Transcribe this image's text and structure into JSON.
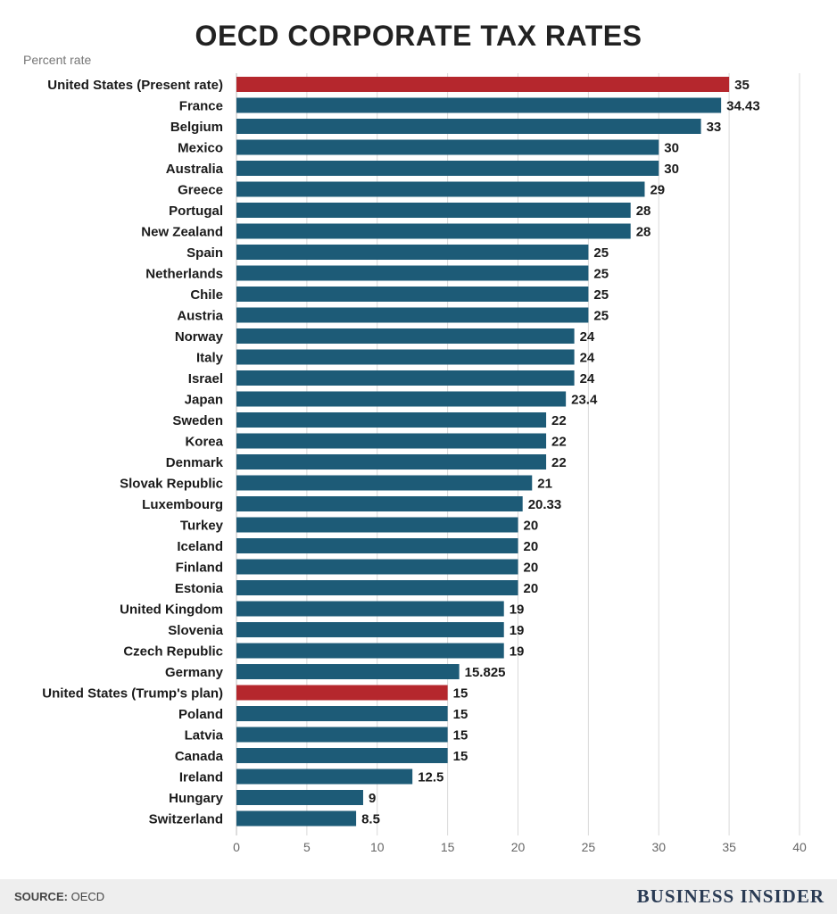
{
  "chart_data": {
    "type": "bar",
    "orientation": "horizontal",
    "title": "OECD CORPORATE TAX RATES",
    "unit_label": "Percent rate",
    "xlim": [
      0,
      40
    ],
    "ticks": [
      0,
      5,
      10,
      15,
      20,
      25,
      30,
      35,
      40
    ],
    "grid": true,
    "colors": {
      "default": "#1d5b77",
      "highlight": "#b5272d"
    },
    "bars": [
      {
        "label": "United States (Present rate)",
        "value": 35,
        "value_label": "35",
        "highlight": true
      },
      {
        "label": "France",
        "value": 34.43,
        "value_label": "34.43",
        "highlight": false
      },
      {
        "label": "Belgium",
        "value": 33,
        "value_label": "33",
        "highlight": false
      },
      {
        "label": "Mexico",
        "value": 30,
        "value_label": "30",
        "highlight": false
      },
      {
        "label": "Australia",
        "value": 30,
        "value_label": "30",
        "highlight": false
      },
      {
        "label": "Greece",
        "value": 29,
        "value_label": "29",
        "highlight": false
      },
      {
        "label": "Portugal",
        "value": 28,
        "value_label": "28",
        "highlight": false
      },
      {
        "label": "New Zealand",
        "value": 28,
        "value_label": "28",
        "highlight": false
      },
      {
        "label": "Spain",
        "value": 25,
        "value_label": "25",
        "highlight": false
      },
      {
        "label": "Netherlands",
        "value": 25,
        "value_label": "25",
        "highlight": false
      },
      {
        "label": "Chile",
        "value": 25,
        "value_label": "25",
        "highlight": false
      },
      {
        "label": "Austria",
        "value": 25,
        "value_label": "25",
        "highlight": false
      },
      {
        "label": "Norway",
        "value": 24,
        "value_label": "24",
        "highlight": false
      },
      {
        "label": "Italy",
        "value": 24,
        "value_label": "24",
        "highlight": false
      },
      {
        "label": "Israel",
        "value": 24,
        "value_label": "24",
        "highlight": false
      },
      {
        "label": "Japan",
        "value": 23.4,
        "value_label": "23.4",
        "highlight": false
      },
      {
        "label": "Sweden",
        "value": 22,
        "value_label": "22",
        "highlight": false
      },
      {
        "label": "Korea",
        "value": 22,
        "value_label": "22",
        "highlight": false
      },
      {
        "label": "Denmark",
        "value": 22,
        "value_label": "22",
        "highlight": false
      },
      {
        "label": "Slovak Republic",
        "value": 21,
        "value_label": "21",
        "highlight": false
      },
      {
        "label": "Luxembourg",
        "value": 20.33,
        "value_label": "20.33",
        "highlight": false
      },
      {
        "label": "Turkey",
        "value": 20,
        "value_label": "20",
        "highlight": false
      },
      {
        "label": "Iceland",
        "value": 20,
        "value_label": "20",
        "highlight": false
      },
      {
        "label": "Finland",
        "value": 20,
        "value_label": "20",
        "highlight": false
      },
      {
        "label": "Estonia",
        "value": 20,
        "value_label": "20",
        "highlight": false
      },
      {
        "label": "United Kingdom",
        "value": 19,
        "value_label": "19",
        "highlight": false
      },
      {
        "label": "Slovenia",
        "value": 19,
        "value_label": "19",
        "highlight": false
      },
      {
        "label": "Czech Republic",
        "value": 19,
        "value_label": "19",
        "highlight": false
      },
      {
        "label": "Germany",
        "value": 15.825,
        "value_label": "15.825",
        "highlight": false
      },
      {
        "label": "United States (Trump's plan)",
        "value": 15,
        "value_label": "15",
        "highlight": true
      },
      {
        "label": "Poland",
        "value": 15,
        "value_label": "15",
        "highlight": false
      },
      {
        "label": "Latvia",
        "value": 15,
        "value_label": "15",
        "highlight": false
      },
      {
        "label": "Canada",
        "value": 15,
        "value_label": "15",
        "highlight": false
      },
      {
        "label": "Ireland",
        "value": 12.5,
        "value_label": "12.5",
        "highlight": false
      },
      {
        "label": "Hungary",
        "value": 9,
        "value_label": "9",
        "highlight": false
      },
      {
        "label": "Switzerland",
        "value": 8.5,
        "value_label": "8.5",
        "highlight": false
      }
    ]
  },
  "footer": {
    "source_label": "SOURCE:",
    "source_text": "OECD",
    "brand": "BUSINESS INSIDER"
  }
}
